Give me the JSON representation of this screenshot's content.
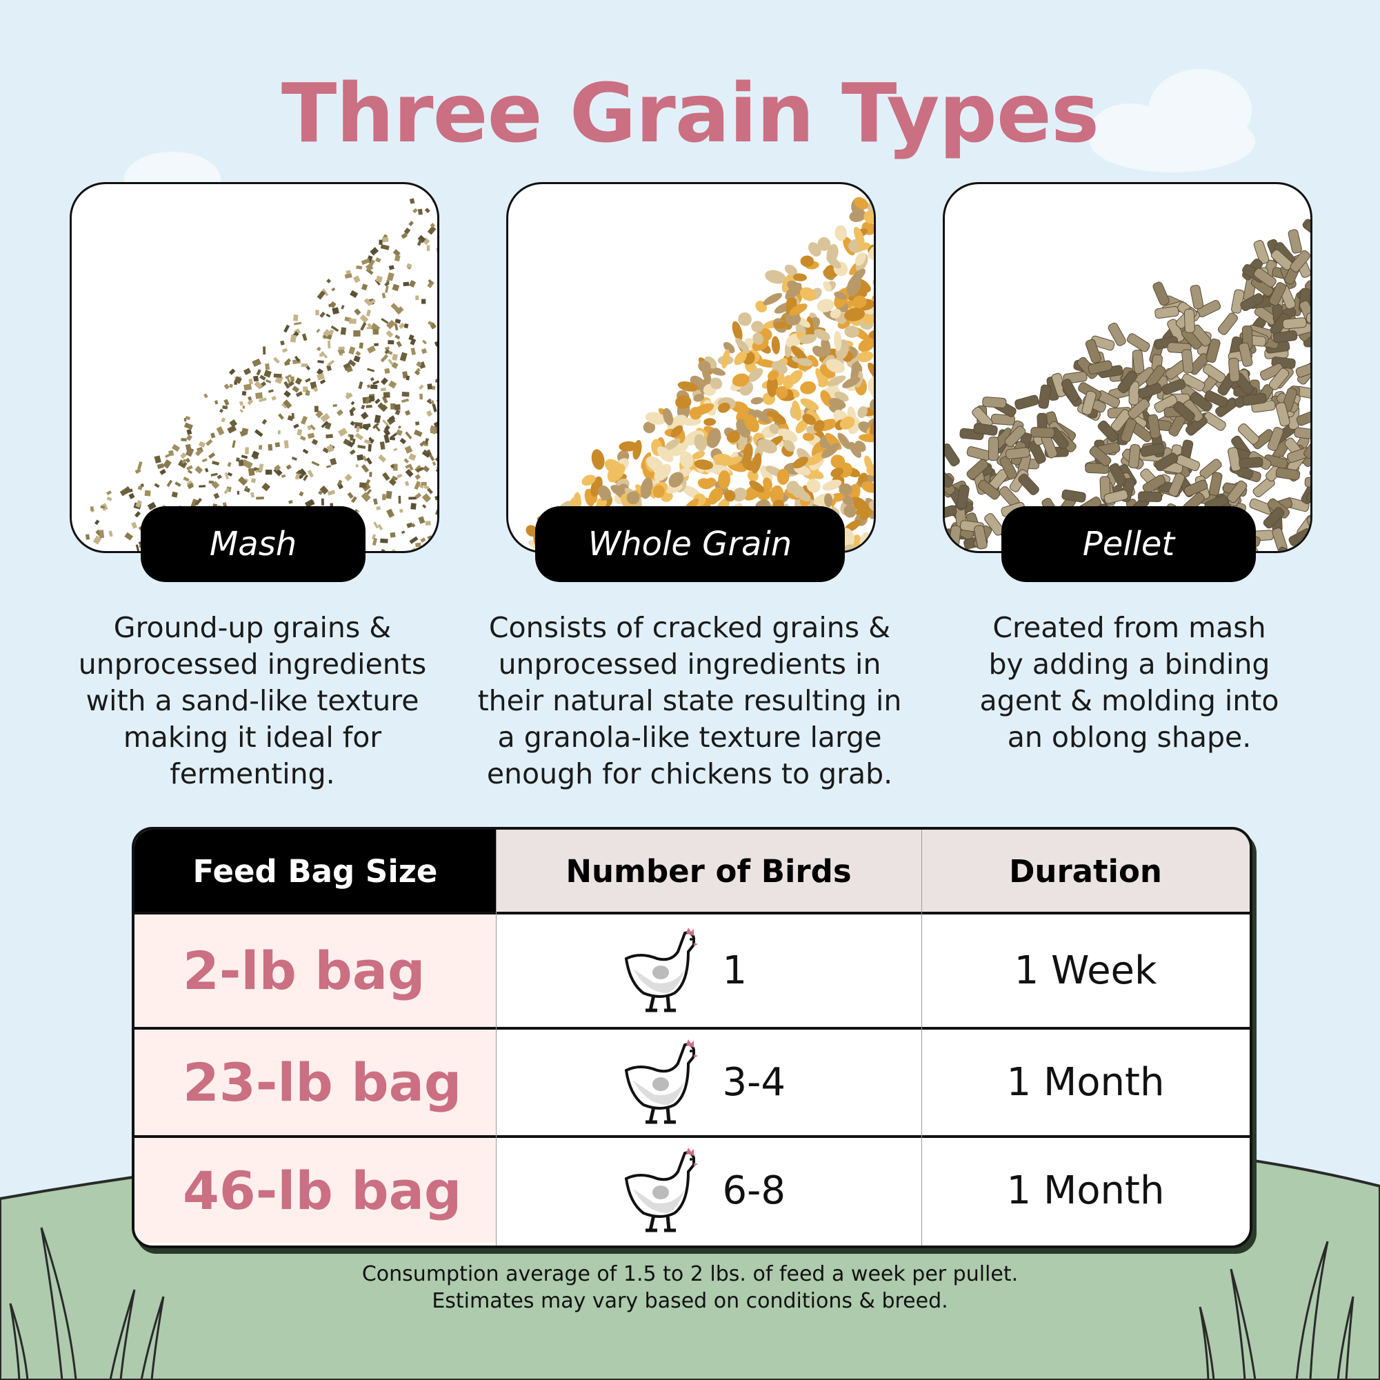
{
  "title": "Three Grain Types",
  "colors": {
    "accent": "#cb6f82",
    "sky": "#e1f0f8",
    "grass": "#aecbad",
    "bag_cell": "#fff0ee",
    "header_gray": "#ebe3e2"
  },
  "grains": [
    {
      "name": "Mash",
      "description": "Ground-up grains & unprocessed ingredients with a sand-like texture making it ideal for fermenting."
    },
    {
      "name": "Whole Grain",
      "description": "Consists of cracked grains & unprocessed ingredients in their natural state resulting in a granola-like texture large enough for chickens to grab."
    },
    {
      "name": "Pellet",
      "description": "Created from mash by adding a binding agent & molding into an oblong shape."
    }
  ],
  "table": {
    "headers": [
      "Feed Bag Size",
      "Number of Birds",
      "Duration"
    ],
    "rows": [
      {
        "bag": "2-lb bag",
        "birds": "1",
        "duration": "1 Week",
        "icon": "chicken-icon"
      },
      {
        "bag": "23-lb bag",
        "birds": "3-4",
        "duration": "1 Month",
        "icon": "chicken-icon"
      },
      {
        "bag": "46-lb bag",
        "birds": "6-8",
        "duration": "1 Month",
        "icon": "chicken-icon"
      }
    ]
  },
  "footnote": [
    "Consumption average of 1.5 to 2 lbs. of feed a week per pullet.",
    "Estimates may vary based on conditions & breed."
  ]
}
